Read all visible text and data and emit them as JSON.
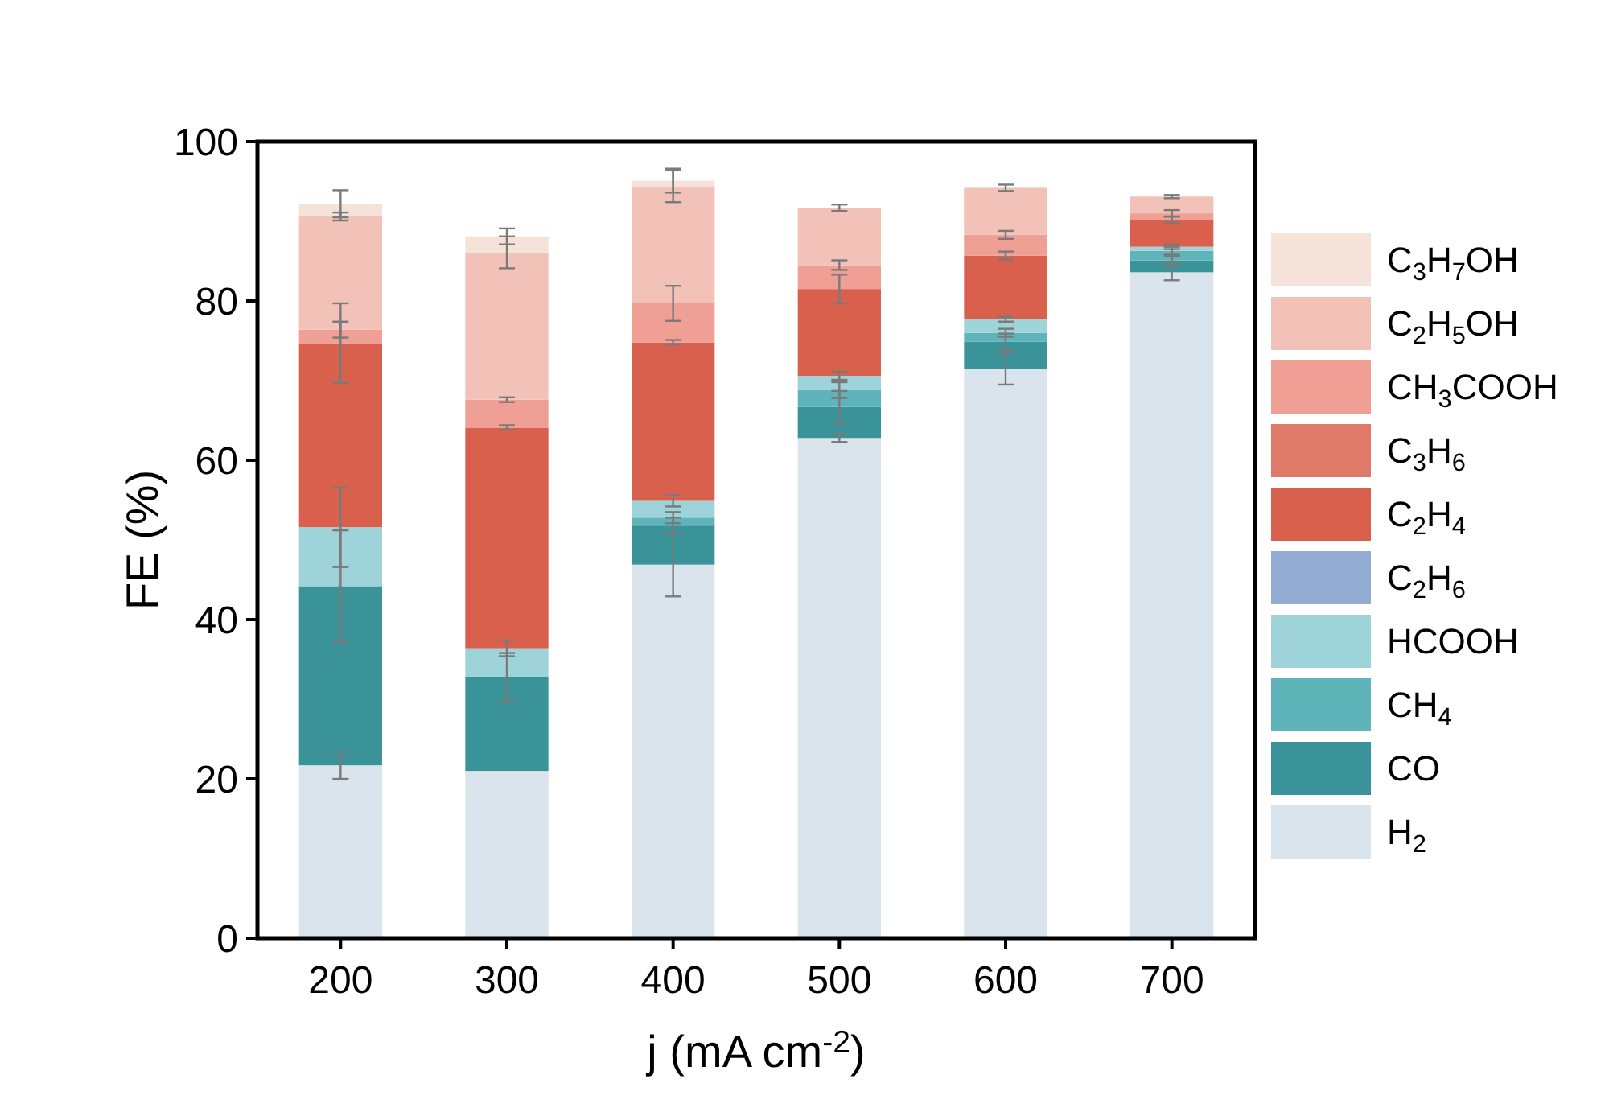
{
  "chart_data": {
    "type": "bar",
    "stacked": true,
    "xlabel": "j (mA cm$^{-2}$)",
    "ylabel": "FE (%)",
    "categories": [
      "200",
      "300",
      "400",
      "500",
      "600",
      "700"
    ],
    "ylim": [
      0,
      100
    ],
    "yticks": [
      0,
      20,
      40,
      60,
      80,
      100
    ],
    "grid": false,
    "legend": "right",
    "series": [
      {
        "name": "H$_{2}$",
        "color": "#dae4ec",
        "values": [
          21.7,
          21.0,
          46.9,
          62.8,
          71.5,
          83.6
        ],
        "errors": [
          1.7,
          null,
          4,
          0.5,
          2,
          1
        ]
      },
      {
        "name": "CO",
        "color": "#3a9399",
        "values": [
          22.5,
          11.8,
          4.9,
          3.9,
          3.4,
          1.5
        ],
        "errors": [
          7,
          3,
          1,
          2,
          1,
          0.5
        ]
      },
      {
        "name": "CH$_{4}$",
        "color": "#5fb4b9",
        "values": [
          0,
          0,
          1.0,
          2.1,
          1.1,
          1.2
        ],
        "errors": [
          null,
          null,
          0.7,
          1,
          0.5,
          0.5
        ]
      },
      {
        "name": "HCOOH",
        "color": "#9ed3d9",
        "values": [
          7.4,
          3.6,
          2.1,
          1.8,
          1.7,
          0.5
        ],
        "errors": [
          5,
          1,
          0.7,
          0.5,
          0.3,
          0.3
        ]
      },
      {
        "name": "C$_{2}$H$_{6}$",
        "color": "#93acd4",
        "values": [
          0,
          0,
          0,
          0,
          0,
          0
        ]
      },
      {
        "name": "C$_{2}$H$_{4}$",
        "color": "#d9604d",
        "values": [
          23.1,
          27.7,
          19.9,
          10.9,
          8.0,
          3.4
        ],
        "errors": [
          5,
          0.3,
          0.3,
          1.8,
          0.5,
          0.4
        ]
      },
      {
        "name": "C$_{3}$H$_{6}$",
        "color": "#e07a68",
        "values": [
          0,
          0,
          0,
          0,
          0,
          0
        ]
      },
      {
        "name": "CH$_{3}$COOH",
        "color": "#ef9f94",
        "values": [
          1.7,
          3.5,
          4.9,
          3.0,
          2.6,
          0.8
        ],
        "errors": [
          1,
          0.3,
          2.2,
          0.6,
          0.5,
          0.4
        ]
      },
      {
        "name": "C$_{2}$H$_{5}$OH",
        "color": "#f2c2b8",
        "values": [
          14.2,
          18.5,
          14.7,
          7.2,
          5.9,
          2.1
        ],
        "errors": [
          0.5,
          2,
          2,
          0.4,
          0.4,
          0.2
        ]
      },
      {
        "name": "C$_{3}$H$_{7}$OH",
        "color": "#f5e3da",
        "values": [
          1.6,
          2.0,
          0.7,
          0,
          0,
          0
        ],
        "errors": [
          1.7,
          1,
          1.5,
          null,
          null,
          null
        ]
      }
    ]
  }
}
